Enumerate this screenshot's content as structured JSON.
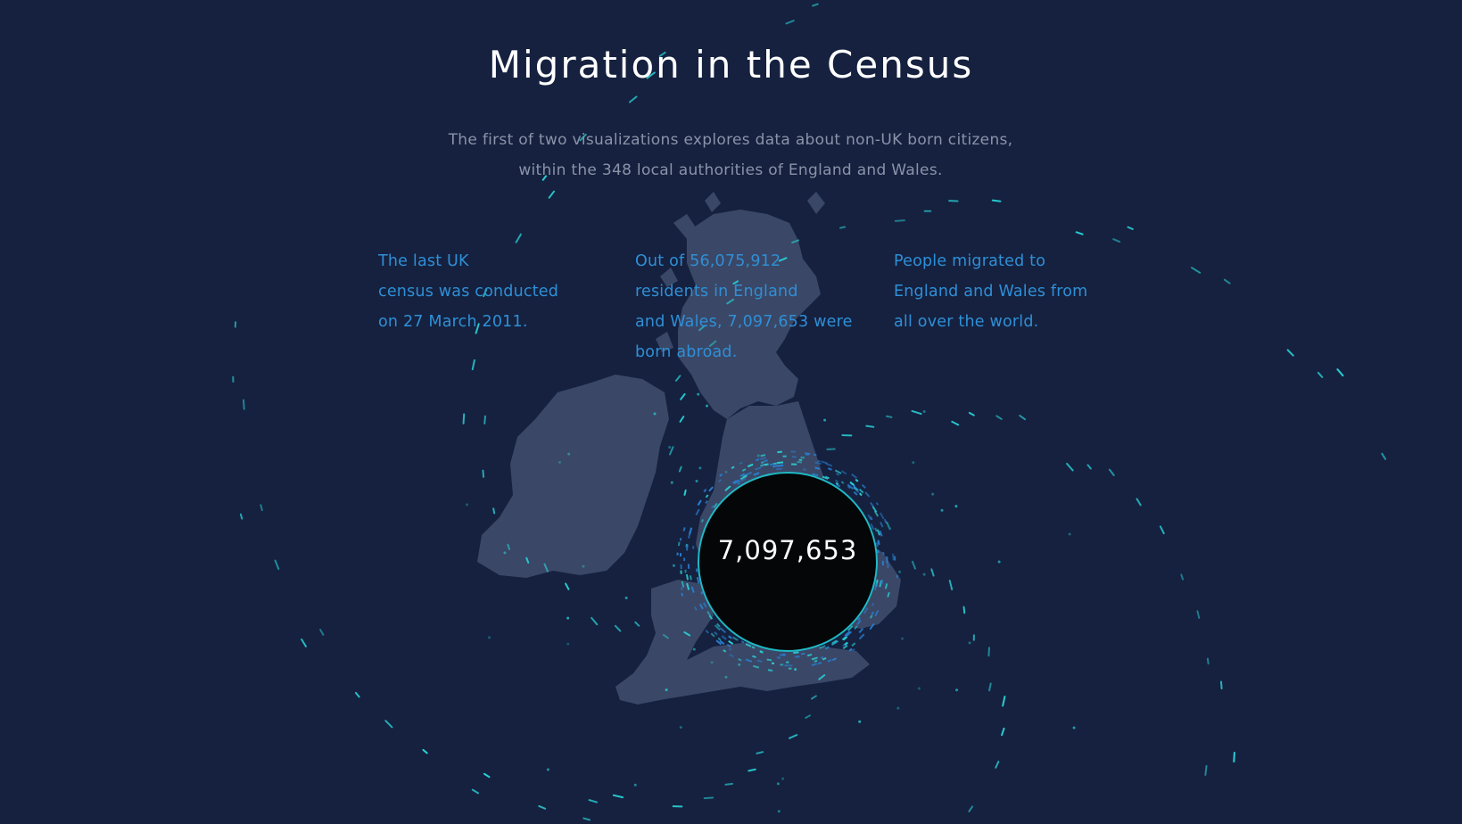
{
  "header": {
    "title": "Migration in the Census",
    "subtitle_lines": [
      "The first of two visualizations explores data about non-UK born citizens,",
      "within the 348 local authorities of England and Wales."
    ]
  },
  "facts": [
    {
      "lines": [
        "The last UK",
        "census was conducted",
        "on 27 March 2011."
      ]
    },
    {
      "lines": [
        "Out of 56,075,912",
        "residents in England",
        "and Wales, 7,097,653 were",
        "born abroad."
      ]
    },
    {
      "lines": [
        "People migrated to",
        "England and Wales from",
        "all over the world."
      ]
    }
  ],
  "counter": {
    "value": "7,097,653"
  },
  "colors": {
    "background": "#15213f",
    "map_land": "#3a4766",
    "accent_text": "#2f8fd6",
    "particle": "#2ad0d6",
    "circle_fill": "#040608",
    "circle_ring": "#1fb8c4"
  }
}
